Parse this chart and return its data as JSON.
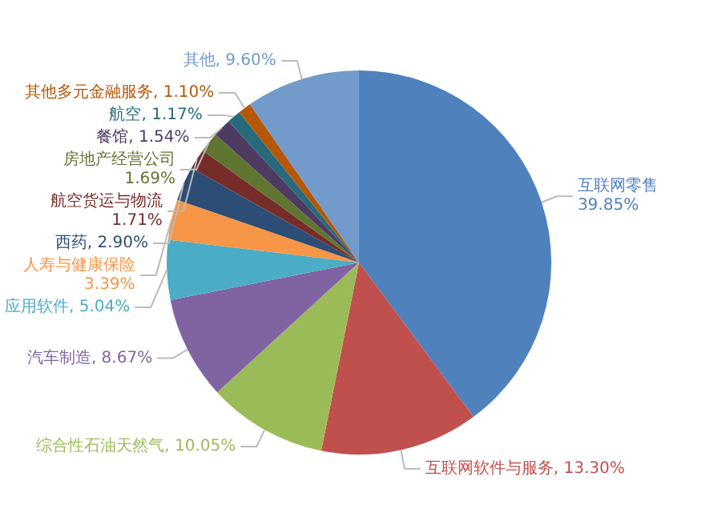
{
  "chart_data": {
    "type": "pie",
    "categories": [
      "互联网零售",
      "互联网软件与服务",
      "综合性石油天然气",
      "汽车制造",
      "应用软件",
      "人寿与健康保险",
      "西药",
      "航空货运与物流",
      "房地产经营公司",
      "餐馆",
      "航空",
      "其他多元金融服务",
      "其他"
    ],
    "values": [
      39.85,
      13.3,
      10.05,
      8.67,
      5.04,
      3.39,
      2.9,
      1.71,
      1.69,
      1.54,
      1.17,
      1.1,
      9.6
    ],
    "value_labels": [
      "39.85%",
      "13.30%",
      "10.05%",
      "8.67%",
      "5.04%",
      "3.39%",
      "2.90%",
      "1.71%",
      "1.69%",
      "1.54%",
      "1.17%",
      "1.10%",
      "9.60%"
    ],
    "colors": [
      "#4f81bd",
      "#c0504d",
      "#9bbb59",
      "#8064a2",
      "#4bacc6",
      "#f79646",
      "#2c4d75",
      "#772c2a",
      "#5f7530",
      "#4d3b62",
      "#276a7c",
      "#b65708",
      "#729aca"
    ],
    "legend": false
  }
}
